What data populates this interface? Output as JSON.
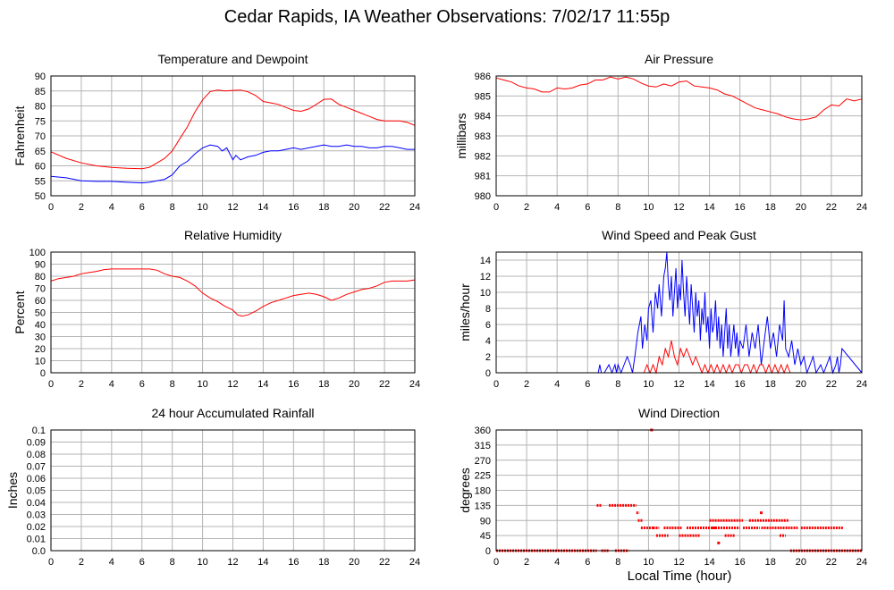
{
  "page": {
    "title": "Cedar Rapids, IA Weather Observations: 7/02/17 11:55p",
    "x_axis_title": "Local Time (hour)"
  },
  "colors": {
    "red": "#ff0000",
    "blue": "#0000ff",
    "grid": "#b4b4b4",
    "frame": "#000000"
  },
  "chart_data": [
    {
      "id": "temp",
      "type": "line",
      "title": "Temperature and Dewpoint",
      "ylabel": "Fahrenheit",
      "xlim": [
        0,
        24
      ],
      "ylim": [
        50,
        90
      ],
      "xticks": [
        0,
        2,
        4,
        6,
        8,
        10,
        12,
        14,
        16,
        18,
        20,
        22,
        24
      ],
      "yticks": [
        50,
        55,
        60,
        65,
        70,
        75,
        80,
        85,
        90
      ],
      "ytick_labels": [
        "50",
        "55",
        "60",
        "65",
        "70",
        "75",
        "80",
        "85",
        "90"
      ],
      "grid": true,
      "series": [
        {
          "color": "#ff0000",
          "x": [
            0,
            1,
            2,
            3,
            4,
            5,
            6,
            6.5,
            7,
            7.5,
            8,
            8.5,
            9,
            9.5,
            10,
            10.5,
            11,
            11.5,
            12,
            12.5,
            13,
            13.5,
            14,
            14.5,
            15,
            15.5,
            16,
            16.5,
            17,
            17.5,
            18,
            18.5,
            19,
            19.5,
            20,
            20.5,
            21,
            21.5,
            22,
            22.5,
            23,
            23.5,
            24
          ],
          "y": [
            64.7,
            62.5,
            61,
            60,
            59.5,
            59.2,
            59,
            59.5,
            61,
            62.5,
            65,
            69,
            73,
            78,
            82,
            84.8,
            85.3,
            85,
            85.2,
            85.3,
            84.7,
            83.5,
            81.5,
            81,
            80.5,
            79.5,
            78.5,
            78.2,
            79,
            80.5,
            82.2,
            82.3,
            80.5,
            79.5,
            78.5,
            77.5,
            76.5,
            75.5,
            75,
            75,
            75,
            74.5,
            73.5
          ]
        },
        {
          "color": "#0000ff",
          "x": [
            0,
            1,
            2,
            3,
            4,
            5,
            6,
            6.5,
            7,
            7.5,
            8,
            8.5,
            9,
            9.5,
            10,
            10.5,
            11,
            11.3,
            11.6,
            12,
            12.2,
            12.5,
            13,
            13.5,
            14,
            14.5,
            15,
            15.5,
            16,
            16.5,
            17,
            17.5,
            18,
            18.5,
            19,
            19.5,
            20,
            20.5,
            21,
            21.5,
            22,
            22.5,
            23,
            23.5,
            24
          ],
          "y": [
            56.5,
            56,
            55,
            54.8,
            54.8,
            54.5,
            54.3,
            54.5,
            55,
            55.5,
            57,
            60,
            61.5,
            64,
            66,
            67,
            66.5,
            65,
            66,
            62,
            63.5,
            62,
            63,
            63.5,
            64.5,
            65,
            65,
            65.5,
            66,
            65.5,
            66,
            66.5,
            67,
            66.5,
            66.5,
            67,
            66.5,
            66.5,
            66,
            66,
            66.5,
            66.5,
            66,
            65.5,
            65.5
          ]
        }
      ]
    },
    {
      "id": "pressure",
      "type": "line",
      "title": "Air Pressure",
      "ylabel": "millibars",
      "xlim": [
        0,
        24
      ],
      "ylim": [
        0,
        6
      ],
      "xticks": [
        0,
        2,
        4,
        6,
        8,
        10,
        12,
        14,
        16,
        18,
        20,
        22,
        24
      ],
      "yticks": [
        0,
        1,
        2,
        3,
        4,
        5,
        6
      ],
      "ytick_labels": [
        "980",
        "981",
        "982",
        "983",
        "984",
        "985",
        "986"
      ],
      "grid": true,
      "series": [
        {
          "color": "#ff0000",
          "x": [
            0,
            0.5,
            1,
            1.5,
            2,
            2.5,
            3,
            3.5,
            4,
            4.5,
            5,
            5.5,
            6,
            6.5,
            7,
            7.5,
            8,
            8.5,
            9,
            9.5,
            10,
            10.5,
            11,
            11.5,
            12,
            12.5,
            13,
            13.5,
            14,
            14.5,
            15,
            15.5,
            16,
            16.5,
            17,
            17.5,
            18,
            18.5,
            19,
            19.5,
            20,
            20.5,
            21,
            21.5,
            22,
            22.5,
            23,
            23.5,
            24
          ],
          "y": [
            5.9,
            5.8,
            5.7,
            5.5,
            5.4,
            5.35,
            5.2,
            5.2,
            5.4,
            5.35,
            5.4,
            5.55,
            5.6,
            5.8,
            5.8,
            5.95,
            5.85,
            5.95,
            5.85,
            5.65,
            5.5,
            5.45,
            5.6,
            5.5,
            5.7,
            5.75,
            5.5,
            5.45,
            5.4,
            5.3,
            5.1,
            5.0,
            4.8,
            4.6,
            4.4,
            4.3,
            4.2,
            4.1,
            3.95,
            3.85,
            3.8,
            3.85,
            3.95,
            4.3,
            4.55,
            4.5,
            4.85,
            4.75,
            4.85
          ]
        }
      ]
    },
    {
      "id": "rh",
      "type": "line",
      "title": "Relative Humidity",
      "ylabel": "Percent",
      "xlim": [
        0,
        24
      ],
      "ylim": [
        0,
        100
      ],
      "xticks": [
        0,
        2,
        4,
        6,
        8,
        10,
        12,
        14,
        16,
        18,
        20,
        22,
        24
      ],
      "yticks": [
        0,
        10,
        20,
        30,
        40,
        50,
        60,
        70,
        80,
        90,
        100
      ],
      "ytick_labels": [
        "0",
        "10",
        "20",
        "30",
        "40",
        "50",
        "60",
        "70",
        "80",
        "90",
        "100"
      ],
      "grid": true,
      "series": [
        {
          "color": "#ff0000",
          "x": [
            0,
            0.5,
            1,
            1.5,
            2,
            2.5,
            3,
            3.5,
            4,
            4.5,
            5,
            5.5,
            6,
            6.5,
            7,
            7.5,
            8,
            8.5,
            9,
            9.5,
            10,
            10.5,
            11,
            11.5,
            12,
            12.3,
            12.6,
            13,
            13.5,
            14,
            14.5,
            15,
            15.5,
            16,
            16.5,
            17,
            17.5,
            18,
            18.5,
            19,
            19.5,
            20,
            20.5,
            21,
            21.5,
            22,
            22.5,
            23,
            23.5,
            24
          ],
          "y": [
            76,
            78,
            79,
            80,
            82,
            83,
            84,
            85.5,
            86,
            86,
            86,
            86,
            86,
            86,
            85,
            82,
            80,
            79,
            76,
            72,
            66,
            62,
            59,
            55,
            52,
            48,
            47,
            48,
            51,
            55,
            58,
            60,
            62,
            64,
            65,
            66,
            65,
            63,
            60,
            62,
            65,
            67,
            69,
            70,
            72,
            75,
            76,
            76,
            76,
            77
          ]
        }
      ]
    },
    {
      "id": "wind",
      "type": "line",
      "title": "Wind Speed and Peak Gust",
      "ylabel": "miles/hour",
      "xlim": [
        0,
        24
      ],
      "ylim": [
        0,
        15
      ],
      "xticks": [
        0,
        2,
        4,
        6,
        8,
        10,
        12,
        14,
        16,
        18,
        20,
        22,
        24
      ],
      "yticks": [
        0,
        2,
        4,
        6,
        8,
        10,
        12,
        14
      ],
      "ytick_labels": [
        "0",
        "2",
        "4",
        "6",
        "8",
        "10",
        "12",
        "14"
      ],
      "grid": true,
      "series": [
        {
          "color": "#0000ff",
          "x": [
            0,
            6.7,
            6.8,
            6.9,
            7.1,
            7.4,
            7.6,
            7.8,
            7.9,
            8.0,
            8.2,
            8.4,
            8.6,
            8.8,
            8.95,
            9.1,
            9.3,
            9.5,
            9.6,
            9.75,
            9.9,
            10.0,
            10.15,
            10.3,
            10.45,
            10.6,
            10.7,
            10.85,
            11.0,
            11.1,
            11.2,
            11.3,
            11.4,
            11.5,
            11.6,
            11.7,
            11.8,
            11.9,
            12.0,
            12.1,
            12.2,
            12.3,
            12.4,
            12.5,
            12.6,
            12.7,
            12.8,
            12.9,
            13.0,
            13.1,
            13.2,
            13.3,
            13.4,
            13.5,
            13.6,
            13.7,
            13.8,
            13.9,
            14.0,
            14.1,
            14.2,
            14.3,
            14.4,
            14.5,
            14.6,
            14.7,
            14.8,
            14.9,
            15.0,
            15.1,
            15.2,
            15.3,
            15.4,
            15.5,
            15.6,
            15.7,
            15.8,
            15.9,
            16.0,
            16.2,
            16.4,
            16.6,
            16.8,
            17.0,
            17.2,
            17.4,
            17.6,
            17.8,
            18.0,
            18.2,
            18.4,
            18.6,
            18.8,
            18.9,
            19.0,
            19.2,
            19.4,
            19.6,
            19.8,
            20.0,
            20.2,
            20.4,
            20.6,
            20.8,
            21.0,
            21.3,
            21.5,
            21.7,
            21.9,
            22.1,
            22.3,
            22.4,
            22.5,
            22.6,
            22.7,
            24
          ],
          "y": [
            0,
            0,
            1,
            0,
            0,
            1,
            0,
            1,
            0,
            1,
            0,
            1,
            2,
            1,
            0,
            2,
            5,
            7,
            3,
            6,
            4,
            8,
            9,
            5,
            10,
            8,
            11,
            7,
            12,
            13,
            15,
            11,
            9,
            12,
            7,
            10,
            13,
            8,
            11,
            9,
            14,
            10,
            7,
            12,
            9,
            6,
            11,
            8,
            5,
            10,
            7,
            9,
            4,
            8,
            6,
            10,
            5,
            7,
            3,
            8,
            5,
            6,
            9,
            4,
            7,
            3,
            6,
            2,
            5,
            8,
            3,
            6,
            2,
            4,
            6,
            3,
            5,
            2,
            4,
            3,
            6,
            2,
            5,
            3,
            6,
            1,
            4,
            7,
            3,
            5,
            2,
            6,
            4,
            9,
            3,
            2,
            4,
            1,
            3,
            1,
            2,
            0,
            1,
            2,
            0,
            1,
            0,
            1,
            2,
            0,
            1,
            2,
            0,
            1,
            3,
            0
          ]
        },
        {
          "color": "#ff0000",
          "x": [
            0,
            9.7,
            9.9,
            10.1,
            10.3,
            10.5,
            10.7,
            10.9,
            11.1,
            11.3,
            11.5,
            11.7,
            11.9,
            12.1,
            12.3,
            12.5,
            12.7,
            12.9,
            13.1,
            13.3,
            13.5,
            13.7,
            13.9,
            14.1,
            14.3,
            14.5,
            14.7,
            14.9,
            15.1,
            15.3,
            15.5,
            15.7,
            15.9,
            16.1,
            16.3,
            16.5,
            16.7,
            16.9,
            17.1,
            17.3,
            17.5,
            17.7,
            17.9,
            18.1,
            18.3,
            18.5,
            18.7,
            18.9,
            19.1,
            19.3,
            24
          ],
          "y": [
            0,
            0,
            1,
            0,
            1,
            0,
            2,
            1,
            3,
            2,
            4,
            2,
            1,
            3,
            2,
            3,
            2,
            1,
            2,
            1,
            0,
            1,
            0,
            1,
            0,
            1,
            0,
            1,
            0,
            1,
            0,
            1,
            1,
            0,
            1,
            1,
            0,
            1,
            0,
            1,
            1,
            0,
            1,
            0,
            1,
            0,
            1,
            0,
            1,
            0,
            0
          ]
        }
      ]
    },
    {
      "id": "rain",
      "type": "line",
      "title": "24 hour Accumulated Rainfall",
      "ylabel": "Inches",
      "xlim": [
        0,
        24
      ],
      "ylim": [
        0,
        0.1
      ],
      "xticks": [
        0,
        2,
        4,
        6,
        8,
        10,
        12,
        14,
        16,
        18,
        20,
        22,
        24
      ],
      "yticks": [
        0,
        0.01,
        0.02,
        0.03,
        0.04,
        0.05,
        0.06,
        0.07,
        0.08,
        0.09,
        0.1
      ],
      "ytick_labels": [
        "0.0",
        "0.01",
        "0.02",
        "0.03",
        "0.04",
        "0.05",
        "0.06",
        "0.07",
        "0.08",
        "0.09",
        "0.1"
      ],
      "grid": true,
      "series": [
        {
          "color": "#ff0000",
          "x": [
            0,
            24
          ],
          "y": [
            0,
            0
          ]
        }
      ]
    },
    {
      "id": "wdir",
      "type": "scatter",
      "title": "Wind Direction",
      "ylabel": "degrees",
      "xlim": [
        0,
        24
      ],
      "ylim": [
        0,
        360
      ],
      "xticks": [
        0,
        2,
        4,
        6,
        8,
        10,
        12,
        14,
        16,
        18,
        20,
        22,
        24
      ],
      "yticks": [
        0,
        45,
        90,
        135,
        180,
        225,
        270,
        315,
        360
      ],
      "ytick_labels": [
        "0",
        "45",
        "90",
        "135",
        "180",
        "225",
        "270",
        "315",
        "360"
      ],
      "grid": true,
      "series": [
        {
          "color": "#ff0000",
          "segments": [
            {
              "x0": 0,
              "x1": 6.6,
              "y": 0
            },
            {
              "x0": 6.6,
              "x1": 6.9,
              "y": 135
            },
            {
              "x0": 6.9,
              "x1": 7.4,
              "y": 0
            },
            {
              "x0": 7.4,
              "x1": 9.2,
              "y": 135
            },
            {
              "x0": 7.8,
              "x1": 8.7,
              "y": 0
            },
            {
              "x0": 9.2,
              "x1": 9.4,
              "y": 113
            },
            {
              "x0": 9.3,
              "x1": 9.6,
              "y": 90
            },
            {
              "x0": 9.5,
              "x1": 10.3,
              "y": 68
            },
            {
              "x0": 10.3,
              "x1": 10.7,
              "y": 68
            },
            {
              "x0": 10.5,
              "x1": 11.3,
              "y": 45
            },
            {
              "x0": 11.0,
              "x1": 12.2,
              "y": 68
            },
            {
              "x0": 12.0,
              "x1": 13.4,
              "y": 45
            },
            {
              "x0": 12.5,
              "x1": 14.4,
              "y": 68
            },
            {
              "x0": 14.0,
              "x1": 16.2,
              "y": 90
            },
            {
              "x0": 14.2,
              "x1": 16.0,
              "y": 68
            },
            {
              "x0": 15.0,
              "x1": 15.7,
              "y": 45
            },
            {
              "x0": 16.2,
              "x1": 17.3,
              "y": 68
            },
            {
              "x0": 16.6,
              "x1": 18.0,
              "y": 90
            },
            {
              "x0": 17.4,
              "x1": 19.8,
              "y": 68
            },
            {
              "x0": 18.0,
              "x1": 19.2,
              "y": 90
            },
            {
              "x0": 18.6,
              "x1": 19.0,
              "y": 45
            },
            {
              "x0": 19.3,
              "x1": 24,
              "y": 0
            },
            {
              "x0": 20.0,
              "x1": 22.8,
              "y": 68
            }
          ],
          "points": [
            {
              "x": 10.2,
              "y": 360
            },
            {
              "x": 17.4,
              "y": 113
            },
            {
              "x": 14.6,
              "y": 23
            }
          ]
        }
      ]
    }
  ]
}
